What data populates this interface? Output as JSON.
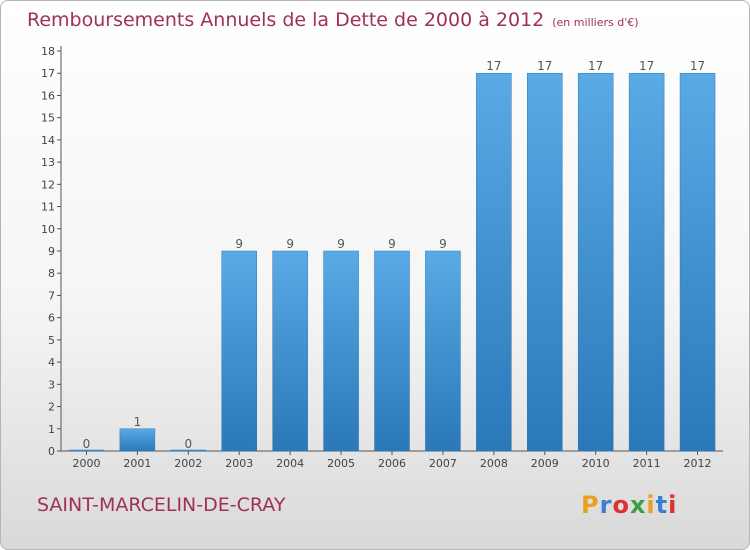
{
  "header": {
    "title": "Remboursements Annuels de la Dette de 2000 à 2012",
    "unit": "(en milliers d'€)"
  },
  "footer": {
    "commune": "SAINT-MARCELIN-DE-CRAY",
    "logo_text": "Proxiti",
    "logo_colors": [
      "#e8a020",
      "#3a7fd0",
      "#e03030",
      "#3aa040",
      "#e8a020",
      "#3a7fd0",
      "#e03030"
    ]
  },
  "colors": {
    "bar_top": "#5aaae6",
    "bar_bottom": "#2a78b8",
    "title": "#a0305a"
  },
  "chart_data": {
    "type": "bar",
    "title": "Remboursements Annuels de la Dette de 2000 à 2012",
    "xlabel": "",
    "ylabel": "",
    "categories": [
      "2000",
      "2001",
      "2002",
      "2003",
      "2004",
      "2005",
      "2006",
      "2007",
      "2008",
      "2009",
      "2010",
      "2011",
      "2012"
    ],
    "values": [
      0,
      1,
      0,
      9,
      9,
      9,
      9,
      9,
      17,
      17,
      17,
      17,
      17
    ],
    "ylim": [
      0,
      18
    ],
    "yticks": [
      0,
      1,
      2,
      3,
      4,
      5,
      6,
      7,
      8,
      9,
      10,
      11,
      12,
      13,
      14,
      15,
      16,
      17,
      18
    ],
    "grid": false,
    "legend": "none"
  }
}
